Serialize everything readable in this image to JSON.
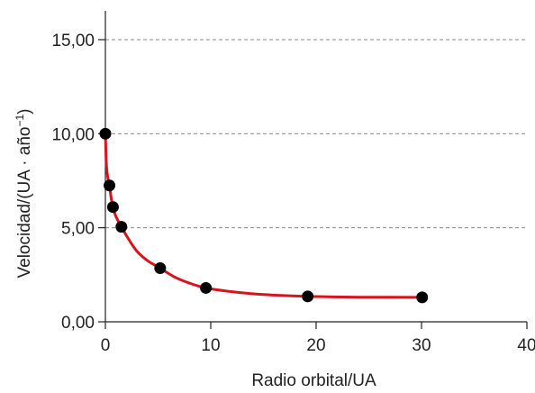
{
  "chart_data": {
    "type": "scatter",
    "title": "",
    "xlabel": "Radio orbital/UA",
    "ylabel_main": "Velocidad/(UA · año",
    "ylabel_sup": "−1",
    "ylabel_close": ")",
    "xlim": [
      0,
      40
    ],
    "ylim": [
      0,
      15
    ],
    "x_ticks": [
      0,
      10,
      20,
      30,
      40
    ],
    "x_tick_labels": [
      "0",
      "10",
      "20",
      "30",
      "40"
    ],
    "y_ticks": [
      0,
      5,
      10,
      15
    ],
    "y_tick_labels": [
      "0,00",
      "5,00",
      "10,00",
      "15,00"
    ],
    "grid": "horizontal dashed",
    "points": [
      {
        "x": 0.0,
        "y": 10.0
      },
      {
        "x": 0.39,
        "y": 7.25
      },
      {
        "x": 0.72,
        "y": 6.1
      },
      {
        "x": 1.52,
        "y": 5.05
      },
      {
        "x": 5.2,
        "y": 2.85
      },
      {
        "x": 9.54,
        "y": 1.8
      },
      {
        "x": 19.2,
        "y": 1.35
      },
      {
        "x": 30.06,
        "y": 1.3
      }
    ],
    "curve": [
      {
        "x": 0.0,
        "y": 10.0
      },
      {
        "x": 0.1,
        "y": 8.3
      },
      {
        "x": 0.25,
        "y": 7.6
      },
      {
        "x": 0.39,
        "y": 7.25
      },
      {
        "x": 0.55,
        "y": 6.6
      },
      {
        "x": 0.72,
        "y": 6.1
      },
      {
        "x": 1.0,
        "y": 5.6
      },
      {
        "x": 1.52,
        "y": 5.05
      },
      {
        "x": 2.2,
        "y": 4.4
      },
      {
        "x": 3.0,
        "y": 3.75
      },
      {
        "x": 4.0,
        "y": 3.25
      },
      {
        "x": 5.2,
        "y": 2.85
      },
      {
        "x": 6.5,
        "y": 2.4
      },
      {
        "x": 8.0,
        "y": 2.05
      },
      {
        "x": 9.54,
        "y": 1.8
      },
      {
        "x": 12.0,
        "y": 1.6
      },
      {
        "x": 15.0,
        "y": 1.45
      },
      {
        "x": 19.2,
        "y": 1.35
      },
      {
        "x": 24.0,
        "y": 1.31
      },
      {
        "x": 30.06,
        "y": 1.3
      }
    ],
    "colors": {
      "curve": "#d7141e",
      "points": "#000000",
      "grid": "#8a8a8a",
      "axis": "#222222"
    }
  }
}
